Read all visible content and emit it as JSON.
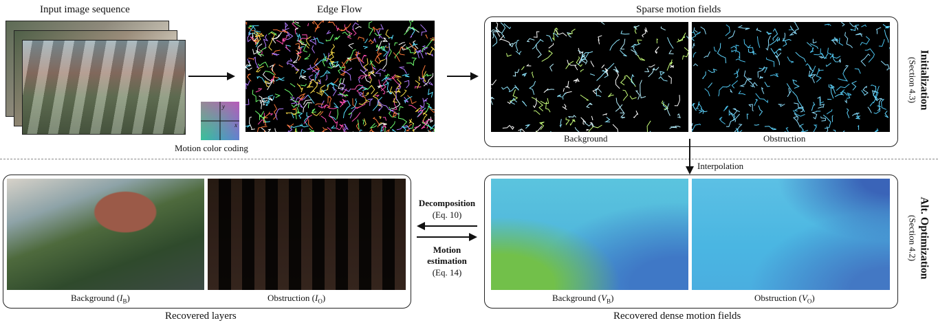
{
  "input": {
    "title": "Input image sequence"
  },
  "edge_flow": {
    "title": "Edge Flow"
  },
  "color_coding": {
    "label": "Motion color coding",
    "axis_x": "x",
    "axis_y": "y"
  },
  "sparse": {
    "title": "Sparse motion fields",
    "bg_caption": "Background",
    "ob_caption": "Obstruction"
  },
  "init": {
    "title": "Initialization",
    "section": "(Section 4.3)"
  },
  "interp": {
    "label": "Interpolation"
  },
  "alt": {
    "title": "Alt. Optimization",
    "section": "(Section 4.2)"
  },
  "dense": {
    "title": "Recovered dense motion fields",
    "bg_caption": "Background (",
    "bg_var": "V",
    "bg_sub": "B",
    "ob_caption": "Obstruction (",
    "ob_var": "V",
    "ob_sub": "O",
    "close": ")"
  },
  "layers": {
    "title": "Recovered layers",
    "bg_caption": "Background (",
    "bg_var": "I",
    "bg_sub": "B",
    "ob_caption": "Obstruction (",
    "ob_var": "I",
    "ob_sub": "O",
    "close": ")"
  },
  "decomposition": {
    "label": "Decomposition",
    "eq": "(Eq. 10)"
  },
  "motion_est": {
    "line1": "Motion",
    "line2": "estimation",
    "eq": "(Eq. 14)"
  }
}
